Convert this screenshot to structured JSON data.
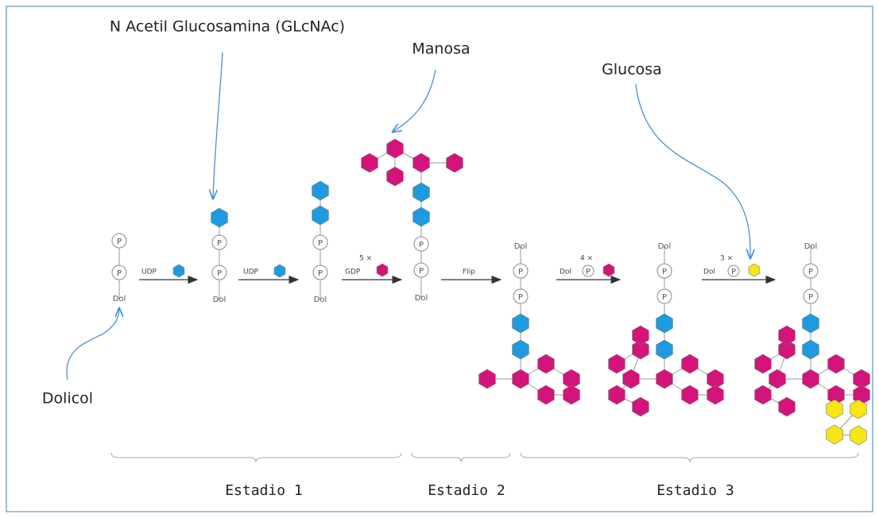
{
  "annotations": {
    "glcnac": "N Acetil Glucosamina (GLcNAc)",
    "mannose": "Manosa",
    "glucose": "Glucosa",
    "dolichol": "Dolicol"
  },
  "symbols": {
    "phosphate": "P",
    "dolichol": "Dol"
  },
  "steps": [
    {
      "label": "UDP"
    },
    {
      "label": "UDP"
    },
    {
      "count": "5 ×",
      "label": "GDP"
    },
    {
      "label": "Flip"
    },
    {
      "count": "4 ×",
      "label": "Dol"
    },
    {
      "count": "3 ×",
      "label": "Dol"
    }
  ],
  "stages": [
    "Estadio 1",
    "Estadio 2",
    "Estadio 3"
  ]
}
